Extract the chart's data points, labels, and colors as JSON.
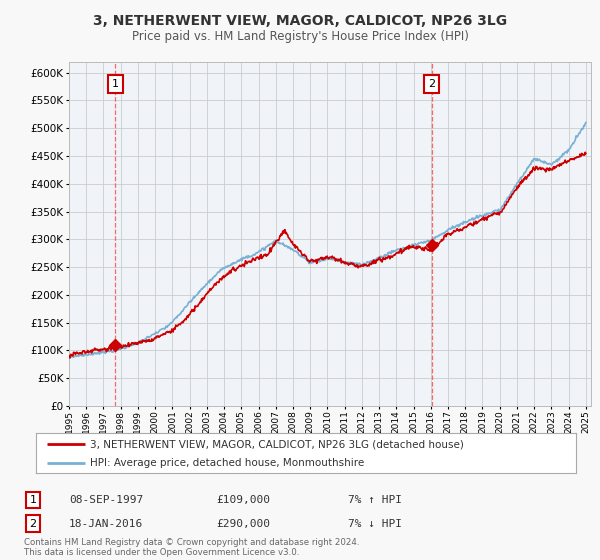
{
  "title": "3, NETHERWENT VIEW, MAGOR, CALDICOT, NP26 3LG",
  "subtitle": "Price paid vs. HM Land Registry's House Price Index (HPI)",
  "ylim": [
    0,
    620000
  ],
  "yticks": [
    0,
    50000,
    100000,
    150000,
    200000,
    250000,
    300000,
    350000,
    400000,
    450000,
    500000,
    550000,
    600000
  ],
  "sale1_date": 1997.69,
  "sale1_price": 109000,
  "sale2_date": 2016.05,
  "sale2_price": 290000,
  "legend_line1": "3, NETHERWENT VIEW, MAGOR, CALDICOT, NP26 3LG (detached house)",
  "legend_line2": "HPI: Average price, detached house, Monmouthshire",
  "table_row1": [
    "1",
    "08-SEP-1997",
    "£109,000",
    "7% ↑ HPI"
  ],
  "table_row2": [
    "2",
    "18-JAN-2016",
    "£290,000",
    "7% ↓ HPI"
  ],
  "footer": "Contains HM Land Registry data © Crown copyright and database right 2024.\nThis data is licensed under the Open Government Licence v3.0.",
  "price_color": "#cc0000",
  "hpi_color": "#7ab0d4",
  "hpi_fill_color": "#d0e4f5",
  "background_color": "#f0f4f8",
  "plot_bg_color": "#f0f4f8",
  "grid_color": "#cccccc",
  "hpi_anchors_t": [
    1995.0,
    1996.0,
    1997.0,
    1998.0,
    1999.0,
    2000.0,
    2001.0,
    2002.0,
    2003.0,
    2004.0,
    2005.0,
    2006.0,
    2007.0,
    2008.0,
    2009.0,
    2010.0,
    2011.0,
    2012.0,
    2013.0,
    2014.0,
    2015.0,
    2016.0,
    2017.0,
    2018.0,
    2019.0,
    2020.0,
    2021.0,
    2022.0,
    2023.0,
    2024.0,
    2025.0
  ],
  "hpi_anchors_v": [
    88000,
    93000,
    97000,
    103000,
    112000,
    128000,
    150000,
    185000,
    220000,
    248000,
    262000,
    275000,
    295000,
    280000,
    258000,
    265000,
    260000,
    255000,
    268000,
    282000,
    292000,
    302000,
    318000,
    330000,
    342000,
    350000,
    400000,
    445000,
    435000,
    460000,
    510000
  ],
  "price_anchors_t": [
    1995.0,
    1996.0,
    1997.0,
    1997.69,
    1998.5,
    1999.5,
    2000.5,
    2001.5,
    2002.5,
    2003.5,
    2004.5,
    2005.5,
    2006.5,
    2007.5,
    2008.0,
    2009.0,
    2010.0,
    2011.0,
    2012.0,
    2013.0,
    2014.0,
    2015.0,
    2016.05,
    2017.0,
    2018.0,
    2019.0,
    2020.0,
    2021.0,
    2022.0,
    2023.0,
    2024.0,
    2025.0
  ],
  "price_anchors_v": [
    90000,
    95000,
    100000,
    109000,
    108000,
    118000,
    132000,
    155000,
    190000,
    230000,
    255000,
    268000,
    282000,
    328000,
    305000,
    270000,
    280000,
    272000,
    268000,
    278000,
    288000,
    300000,
    290000,
    320000,
    335000,
    345000,
    355000,
    400000,
    435000,
    430000,
    445000,
    455000
  ]
}
